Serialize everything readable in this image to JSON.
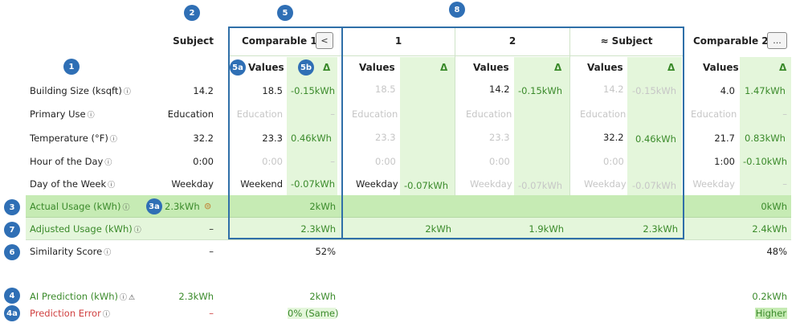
{
  "badges": {
    "b1": "1",
    "b2": "2",
    "b3": "3",
    "b3a": "3a",
    "b4": "4",
    "b4a": "4a",
    "b5": "5",
    "b5a": "5a",
    "b5b": "5b",
    "b6": "6",
    "b7": "7",
    "b8": "8"
  },
  "header": {
    "subject": "Subject",
    "comparable1": "Comparable 1",
    "col1": "1",
    "col2": "2",
    "approx_subject": "≈ Subject",
    "comparable2": "Comparable 2",
    "prev_btn": "<",
    "more_btn": "...",
    "values": "Values",
    "delta": "Δ"
  },
  "rows": {
    "building_size": {
      "label": "Building Size (ksqft)",
      "subject": "14.2",
      "c1v": "18.5",
      "c1d": "-0.15kWh",
      "s1v": "18.5",
      "s2v": "14.2",
      "s2d": "-0.15kWh",
      "s3v": "14.2",
      "s3d": "-0.15kWh",
      "c2v": "4.0",
      "c2d": "1.47kWh"
    },
    "primary_use": {
      "label": "Primary Use",
      "subject": "Education",
      "c1v": "Education",
      "c1d": "–",
      "s1v": "Education",
      "s2v": "Education",
      "s3v": "Education",
      "c2v": "Education",
      "c2d": "–"
    },
    "temperature": {
      "label": "Temperature (°F)",
      "subject": "32.2",
      "c1v": "23.3",
      "c1d": "0.46kWh",
      "s1v": "23.3",
      "s2v": "23.3",
      "s3v": "32.2",
      "s3d": "0.46kWh",
      "c2v": "21.7",
      "c2d": "0.83kWh"
    },
    "hour": {
      "label": "Hour of the Day",
      "subject": "0:00",
      "c1v": "0:00",
      "c1d": "–",
      "s1v": "0:00",
      "s2v": "0:00",
      "s3v": "0:00",
      "c2v": "1:00",
      "c2d": "-0.10kWh"
    },
    "day": {
      "label": "Day of the Week",
      "subject": "Weekday",
      "c1v": "Weekend",
      "c1d": "-0.07kWh",
      "s1v": "Weekday",
      "s1d": "-0.07kWh",
      "s2v": "Weekday",
      "s2d": "-0.07kWh",
      "s3v": "Weekday",
      "s3d": "-0.07kWh",
      "c2v": "Weekday",
      "c2d": "–"
    }
  },
  "actual": {
    "label": "Actual Usage (kWh)",
    "subject": "2.3kWh",
    "c1": "2kWh",
    "c2": "0kWh"
  },
  "adjusted": {
    "label": "Adjusted Usage (kWh)",
    "subject": "–",
    "c1": "2.3kWh",
    "s1": "2kWh",
    "s2": "1.9kWh",
    "s3": "2.3kWh",
    "c2": "2.4kWh"
  },
  "similarity": {
    "label": "Similarity Score",
    "subject": "–",
    "c1": "52%",
    "c2": "48%"
  },
  "ai": {
    "label": "AI Prediction (kWh)",
    "subject": "2.3kWh",
    "c1": "2kWh",
    "c2": "0.2kWh"
  },
  "error": {
    "label": "Prediction Error",
    "subject": "–",
    "c1": "0% (Same)",
    "c2": "Higher"
  },
  "icons": {
    "help": "?",
    "warning": "⚠",
    "emoji": "😐"
  },
  "colors": {
    "accent": "#2f6fb5",
    "green": "#3a8a2a",
    "light_green": "#e4f6db",
    "strong_green": "#c6ebb4",
    "red": "#d04040"
  }
}
